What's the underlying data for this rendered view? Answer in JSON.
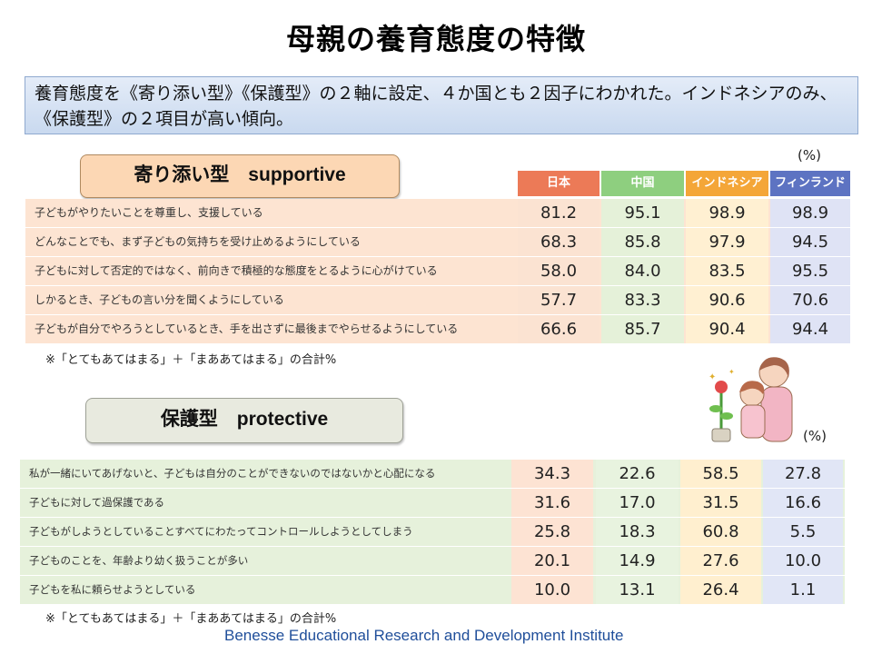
{
  "title": "母親の養育態度の特徴",
  "summary": "養育態度を《寄り添い型》《保護型》の２軸に設定、４か国とも２因子にわかれた。インドネシアのみ、《保護型》の２項目が高い傾向。",
  "unit_label": "(%)",
  "columns": [
    "日本",
    "中国",
    "インドネシア",
    "フィンランド"
  ],
  "colors": {
    "japan": "#ec7a57",
    "china": "#8ecf7f",
    "indonesia": "#f4a638",
    "finland": "#5d73c2"
  },
  "supportive": {
    "title": "寄り添い型　supportive",
    "rows": [
      {
        "label": "子どもがやりたいことを尊重し、支援している",
        "values": [
          "81.2",
          "95.1",
          "98.9",
          "98.9"
        ]
      },
      {
        "label": "どんなことでも、まず子どもの気持ちを受け止めるようにしている",
        "values": [
          "68.3",
          "85.8",
          "97.9",
          "94.5"
        ]
      },
      {
        "label": "子どもに対して否定的ではなく、前向きで積極的な態度をとるように心がけている",
        "values": [
          "58.0",
          "84.0",
          "83.5",
          "95.5"
        ]
      },
      {
        "label": "しかるとき、子どもの言い分を聞くようにしている",
        "values": [
          "57.7",
          "83.3",
          "90.6",
          "70.6"
        ]
      },
      {
        "label": "子どもが自分でやろうとしているとき、手を出さずに最後までやらせるようにしている",
        "values": [
          "66.6",
          "85.7",
          "90.4",
          "94.4"
        ]
      }
    ],
    "note": "※「とてもあてはまる」＋「まああてはまる」の合計%"
  },
  "protective": {
    "title": "保護型　protective",
    "rows": [
      {
        "label": "私が一緒にいてあげないと、子どもは自分のことができないのではないかと心配になる",
        "values": [
          "34.3",
          "22.6",
          "58.5",
          "27.8"
        ]
      },
      {
        "label": "子どもに対して過保護である",
        "values": [
          "31.6",
          "17.0",
          "31.5",
          "16.6"
        ]
      },
      {
        "label": "子どもがしようとしていることすべてにわたってコントロールしようとしてしまう",
        "values": [
          "25.8",
          "18.3",
          "60.8",
          "5.5"
        ]
      },
      {
        "label": "子どものことを、年齢より幼く扱うことが多い",
        "values": [
          "20.1",
          "14.9",
          "27.6",
          "10.0"
        ]
      },
      {
        "label": "子どもを私に頼らせようとしている",
        "values": [
          "10.0",
          "13.1",
          "26.4",
          "1.1"
        ]
      }
    ],
    "note": "※「とてもあてはまる」＋「まああてはまる」の合計%"
  },
  "footer": "Benesse Educational Research and Development Institute"
}
